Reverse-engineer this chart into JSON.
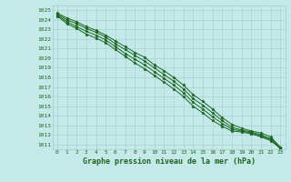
{
  "title": "Graphe pression niveau de la mer (hPa)",
  "x_values": [
    0,
    1,
    2,
    3,
    4,
    5,
    6,
    7,
    8,
    9,
    10,
    11,
    12,
    13,
    14,
    15,
    16,
    17,
    18,
    19,
    20,
    21,
    22,
    23
  ],
  "series": [
    [
      1024.7,
      1024.2,
      1023.8,
      1023.3,
      1022.9,
      1022.4,
      1021.8,
      1021.2,
      1020.6,
      1020.1,
      1019.3,
      1018.7,
      1018.0,
      1017.2,
      1016.2,
      1015.5,
      1014.7,
      1013.8,
      1013.1,
      1012.7,
      1012.4,
      1012.2,
      1011.8,
      1010.7
    ],
    [
      1024.6,
      1024.0,
      1023.6,
      1023.1,
      1022.7,
      1022.2,
      1021.5,
      1020.9,
      1020.3,
      1019.7,
      1019.0,
      1018.3,
      1017.6,
      1016.8,
      1015.8,
      1015.1,
      1014.3,
      1013.5,
      1012.8,
      1012.5,
      1012.3,
      1012.0,
      1011.6,
      1010.7
    ],
    [
      1024.5,
      1023.8,
      1023.3,
      1022.8,
      1022.4,
      1021.9,
      1021.2,
      1020.5,
      1019.9,
      1019.3,
      1018.6,
      1017.9,
      1017.2,
      1016.4,
      1015.4,
      1014.7,
      1013.9,
      1013.2,
      1012.6,
      1012.4,
      1012.2,
      1011.9,
      1011.5,
      1010.6
    ],
    [
      1024.4,
      1023.6,
      1023.1,
      1022.5,
      1022.1,
      1021.6,
      1020.9,
      1020.2,
      1019.5,
      1018.9,
      1018.2,
      1017.5,
      1016.8,
      1016.0,
      1015.0,
      1014.3,
      1013.5,
      1012.9,
      1012.4,
      1012.3,
      1012.1,
      1011.8,
      1011.4,
      1010.6
    ]
  ],
  "line_color": "#1a6620",
  "marker": "*",
  "markersize": 2.5,
  "linewidth": 0.7,
  "ylim": [
    1011,
    1025
  ],
  "xlim": [
    0,
    23
  ],
  "yticks": [
    1011,
    1012,
    1013,
    1014,
    1015,
    1016,
    1017,
    1018,
    1019,
    1020,
    1021,
    1022,
    1023,
    1024,
    1025
  ],
  "xticks": [
    0,
    1,
    2,
    3,
    4,
    5,
    6,
    7,
    8,
    9,
    10,
    11,
    12,
    13,
    14,
    15,
    16,
    17,
    18,
    19,
    20,
    21,
    22,
    23
  ],
  "bg_color": "#c5e8e8",
  "grid_color": "#9ecece",
  "tick_label_color": "#1a6620",
  "title_color": "#1a6620",
  "title_fontsize": 6.0,
  "tick_fontsize": 4.5
}
